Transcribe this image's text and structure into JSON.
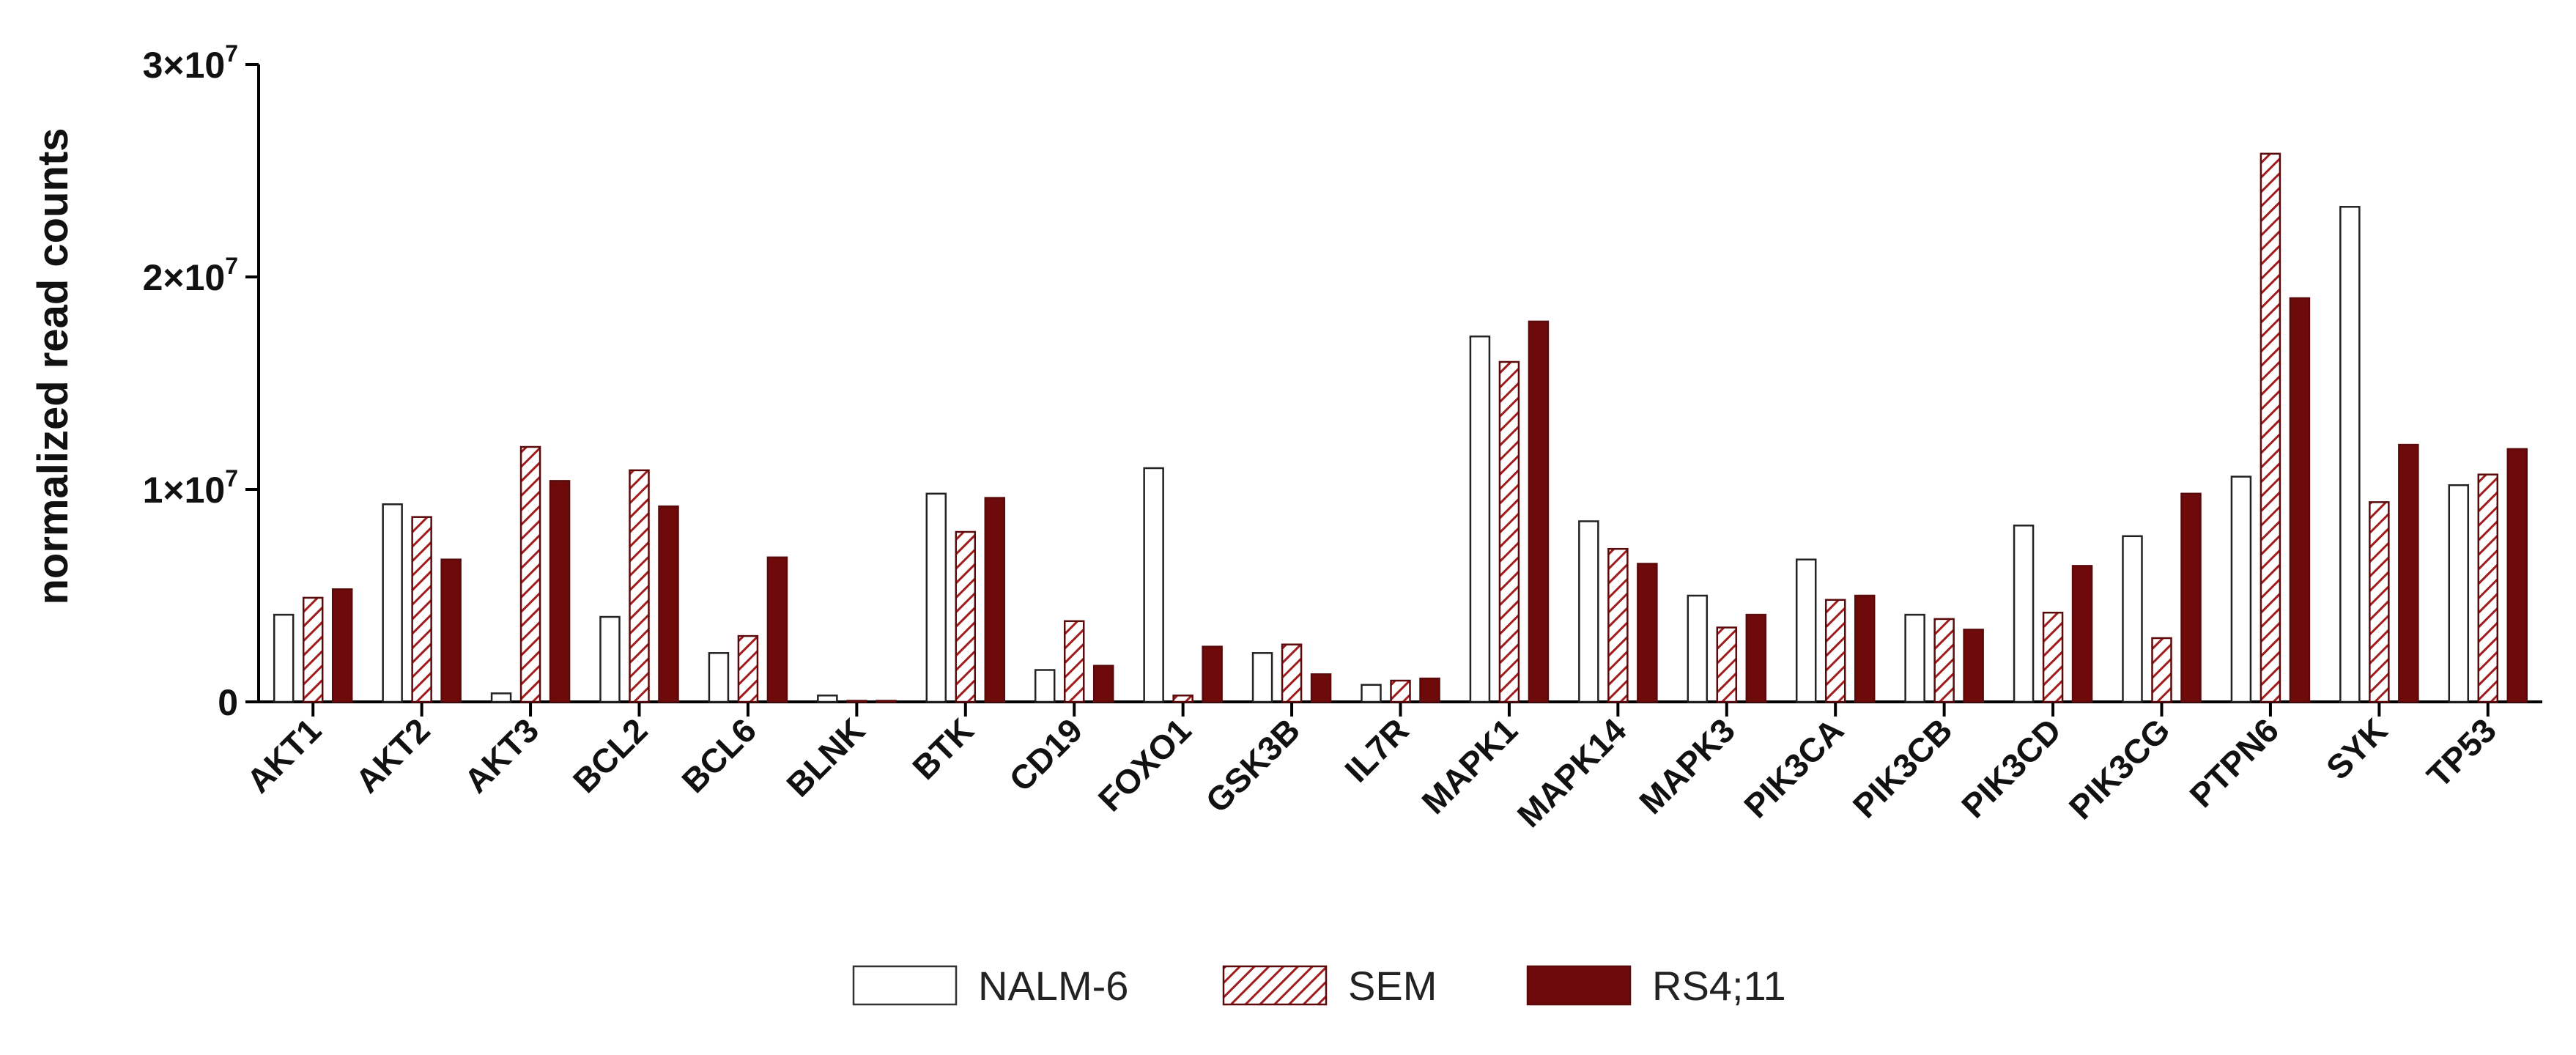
{
  "chart_data": {
    "type": "bar",
    "title": "",
    "xlabel": "",
    "ylabel": "normalized read counts",
    "ylim": [
      0,
      30000000
    ],
    "y_ticks": [
      {
        "value": 0,
        "label": "0"
      },
      {
        "value": 10000000,
        "label": "1×10",
        "exp": "7"
      },
      {
        "value": 20000000,
        "label": "2×10",
        "exp": "7"
      },
      {
        "value": 30000000,
        "label": "3×10",
        "exp": "7"
      }
    ],
    "categories": [
      "AKT1",
      "AKT2",
      "AKT3",
      "BCL2",
      "BCL6",
      "BLNK",
      "BTK",
      "CD19",
      "FOXO1",
      "GSK3B",
      "IL7R",
      "MAPK1",
      "MAPK14",
      "MAPK3",
      "PIK3CA",
      "PIK3CB",
      "PIK3CD",
      "PIK3CG",
      "PTPN6",
      "SYK",
      "TP53"
    ],
    "series": [
      {
        "name": "NALM-6",
        "style": "open",
        "color": "#ffffff",
        "values": [
          4100000,
          9300000,
          400000,
          4000000,
          2300000,
          300000,
          9800000,
          1500000,
          11000000,
          2300000,
          800000,
          17200000,
          8500000,
          5000000,
          6700000,
          4100000,
          8300000,
          7800000,
          10600000,
          23300000,
          10200000
        ]
      },
      {
        "name": "SEM",
        "style": "hatched",
        "color": "#8b1a1a",
        "values": [
          4900000,
          8700000,
          12000000,
          10900000,
          3100000,
          50000,
          8000000,
          3800000,
          300000,
          2700000,
          1000000,
          16000000,
          7200000,
          3500000,
          4800000,
          3900000,
          4200000,
          3000000,
          25800000,
          9400000,
          10700000
        ]
      },
      {
        "name": "RS4;11",
        "style": "filled",
        "color": "#6e0a0a",
        "values": [
          5300000,
          6700000,
          10400000,
          9200000,
          6800000,
          50000,
          9600000,
          1700000,
          2600000,
          1300000,
          1100000,
          17900000,
          6500000,
          4100000,
          5000000,
          3400000,
          6400000,
          9800000,
          19000000,
          12100000,
          11900000
        ]
      }
    ],
    "legend": {
      "position": "bottom-center",
      "entries": [
        "NALM-6",
        "SEM",
        "RS4;11"
      ]
    }
  }
}
